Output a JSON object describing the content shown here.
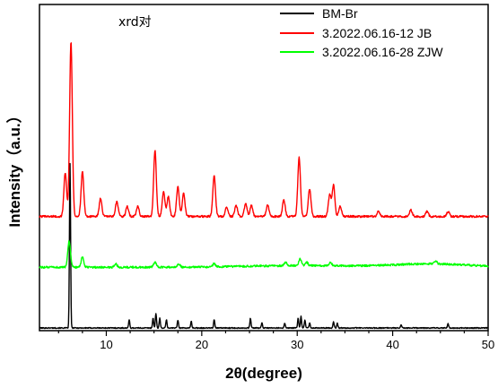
{
  "chart_data": {
    "type": "line",
    "title": "",
    "annotation": "xrd对",
    "xlabel": "2θ(degree)",
    "ylabel": "Intensity（a.u.）",
    "xlim": [
      3,
      50
    ],
    "xticks": [
      10,
      20,
      30,
      40,
      50
    ],
    "tick_labels": [
      "10",
      "20",
      "30",
      "40",
      "50"
    ],
    "y_ticks_shown": false,
    "grid": false,
    "legend_position": "top-right",
    "y_units": "arbitrary (curves vertically offset)",
    "series": [
      {
        "name": "BM-Br",
        "color": "#000000",
        "baseline": 0,
        "peaks": [
          [
            6.2,
            1.0
          ],
          [
            12.4,
            0.05
          ],
          [
            14.9,
            0.06
          ],
          [
            15.2,
            0.09
          ],
          [
            15.6,
            0.06
          ],
          [
            16.3,
            0.05
          ],
          [
            17.5,
            0.05
          ],
          [
            18.9,
            0.04
          ],
          [
            21.3,
            0.05
          ],
          [
            25.1,
            0.06
          ],
          [
            26.3,
            0.03
          ],
          [
            28.7,
            0.03
          ],
          [
            30.1,
            0.06
          ],
          [
            30.4,
            0.07
          ],
          [
            30.8,
            0.05
          ],
          [
            31.3,
            0.03
          ],
          [
            33.8,
            0.04
          ],
          [
            34.2,
            0.03
          ],
          [
            40.9,
            0.02
          ],
          [
            45.8,
            0.03
          ]
        ]
      },
      {
        "name": "3.2022.06.16-12 JB",
        "color": "#ff0000",
        "baseline": 0.68,
        "peaks": [
          [
            5.7,
            0.27
          ],
          [
            6.3,
            1.07
          ],
          [
            7.5,
            0.27
          ],
          [
            9.4,
            0.11
          ],
          [
            11.1,
            0.09
          ],
          [
            12.2,
            0.06
          ],
          [
            13.3,
            0.06
          ],
          [
            15.1,
            0.4
          ],
          [
            16.0,
            0.15
          ],
          [
            16.5,
            0.12
          ],
          [
            17.5,
            0.18
          ],
          [
            18.1,
            0.14
          ],
          [
            21.3,
            0.25
          ],
          [
            22.6,
            0.06
          ],
          [
            23.6,
            0.07
          ],
          [
            24.6,
            0.08
          ],
          [
            25.2,
            0.07
          ],
          [
            26.9,
            0.07
          ],
          [
            28.6,
            0.1
          ],
          [
            30.2,
            0.36
          ],
          [
            31.3,
            0.17
          ],
          [
            33.4,
            0.13
          ],
          [
            33.8,
            0.19
          ],
          [
            34.5,
            0.06
          ],
          [
            38.5,
            0.03
          ],
          [
            41.9,
            0.04
          ],
          [
            43.6,
            0.03
          ],
          [
            45.8,
            0.03
          ]
        ]
      },
      {
        "name": "3.2022.06.16-28 ZJW",
        "color": "#00ff00",
        "baseline": 0.37,
        "peaks": [
          [
            6.1,
            0.16
          ],
          [
            7.5,
            0.06
          ],
          [
            11.0,
            0.02
          ],
          [
            15.1,
            0.03
          ],
          [
            17.6,
            0.02
          ],
          [
            21.3,
            0.02
          ],
          [
            28.8,
            0.02
          ],
          [
            30.3,
            0.04
          ],
          [
            31.0,
            0.02
          ],
          [
            33.5,
            0.02
          ],
          [
            44.5,
            0.02
          ]
        ]
      }
    ]
  }
}
